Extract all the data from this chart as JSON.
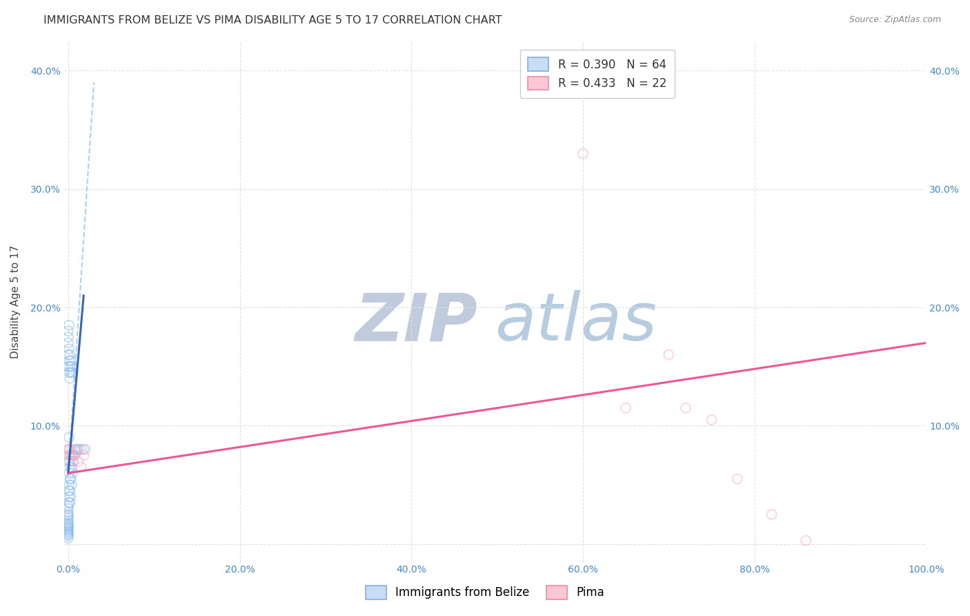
{
  "title": "IMMIGRANTS FROM BELIZE VS PIMA DISABILITY AGE 5 TO 17 CORRELATION CHART",
  "source": "Source: ZipAtlas.com",
  "ylabel": "Disability Age 5 to 17",
  "watermark_zip": "ZIP",
  "watermark_atlas": "atlas",
  "xlim": [
    -0.005,
    1.0
  ],
  "ylim": [
    -0.015,
    0.425
  ],
  "xticks": [
    0.0,
    0.2,
    0.4,
    0.6,
    0.8,
    1.0
  ],
  "xticklabels": [
    "0.0%",
    "20.0%",
    "40.0%",
    "60.0%",
    "80.0%",
    "100.0%"
  ],
  "yticks": [
    0.0,
    0.1,
    0.2,
    0.3,
    0.4
  ],
  "yticklabels": [
    "",
    "10.0%",
    "20.0%",
    "30.0%",
    "40.0%"
  ],
  "blue_scatter_x": [
    0.0,
    0.0,
    0.0,
    0.0,
    0.0,
    0.0,
    0.0,
    0.0,
    0.0,
    0.0,
    0.0,
    0.0,
    0.0,
    0.0,
    0.0,
    0.0,
    0.0,
    0.0,
    0.0,
    0.0,
    0.001,
    0.001,
    0.001,
    0.001,
    0.001,
    0.001,
    0.001,
    0.001,
    0.002,
    0.002,
    0.002,
    0.002,
    0.002,
    0.003,
    0.003,
    0.003,
    0.004,
    0.004,
    0.005,
    0.005,
    0.006,
    0.007,
    0.008,
    0.01,
    0.012,
    0.015,
    0.018,
    0.0,
    0.0,
    0.001,
    0.001,
    0.002,
    0.002,
    0.003,
    0.0,
    0.0,
    0.0,
    0.001,
    0.001,
    0.002,
    0.003,
    0.004,
    0.005
  ],
  "blue_scatter_y": [
    0.005,
    0.007,
    0.008,
    0.009,
    0.01,
    0.011,
    0.012,
    0.013,
    0.014,
    0.015,
    0.016,
    0.017,
    0.018,
    0.02,
    0.022,
    0.024,
    0.025,
    0.027,
    0.03,
    0.032,
    0.035,
    0.04,
    0.045,
    0.05,
    0.06,
    0.07,
    0.08,
    0.09,
    0.035,
    0.045,
    0.055,
    0.065,
    0.075,
    0.04,
    0.055,
    0.07,
    0.05,
    0.065,
    0.06,
    0.075,
    0.07,
    0.075,
    0.08,
    0.08,
    0.08,
    0.08,
    0.08,
    0.15,
    0.16,
    0.145,
    0.155,
    0.14,
    0.15,
    0.145,
    0.17,
    0.175,
    0.18,
    0.165,
    0.185,
    0.16,
    0.155,
    0.15,
    0.145
  ],
  "pink_scatter_x": [
    0.0,
    0.0,
    0.001,
    0.002,
    0.003,
    0.004,
    0.005,
    0.006,
    0.008,
    0.01,
    0.012,
    0.015,
    0.018,
    0.02,
    0.6,
    0.65,
    0.7,
    0.72,
    0.75,
    0.78,
    0.82,
    0.86
  ],
  "pink_scatter_y": [
    0.07,
    0.08,
    0.075,
    0.08,
    0.075,
    0.08,
    0.075,
    0.07,
    0.075,
    0.078,
    0.07,
    0.065,
    0.075,
    0.08,
    0.33,
    0.115,
    0.16,
    0.115,
    0.105,
    0.055,
    0.025,
    0.003
  ],
  "blue_trend_x": [
    0.0,
    0.03
  ],
  "blue_trend_y": [
    0.06,
    0.39
  ],
  "blue_line_x": [
    0.0,
    0.018
  ],
  "blue_line_y": [
    0.06,
    0.21
  ],
  "pink_line_x": [
    0.0,
    1.0
  ],
  "pink_line_y": [
    0.06,
    0.17
  ],
  "scatter_size": 100,
  "scatter_alpha": 0.5,
  "blue_color": "#88bbee",
  "pink_color": "#f8aabc",
  "blue_line_color": "#2255aa",
  "pink_line_color": "#ee4488",
  "blue_trend_color": "#88bbee",
  "grid_color": "#e0e0e0",
  "background_color": "#ffffff",
  "title_fontsize": 11.5,
  "axis_label_fontsize": 11,
  "tick_fontsize": 10,
  "legend_fontsize": 12,
  "source_fontsize": 9,
  "watermark_zip_color": "#c0ccdd",
  "watermark_atlas_color": "#b8cce0",
  "watermark_fontsize": 70
}
